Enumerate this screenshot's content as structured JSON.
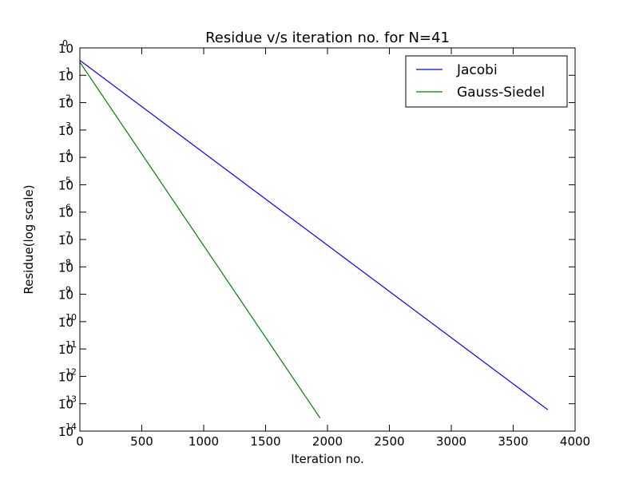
{
  "chart_data": {
    "type": "line",
    "title": "Residue v/s iteration no. for N=41",
    "xlabel": "Iteration no.",
    "ylabel": "Residue(log scale)",
    "xlim": [
      0,
      4000
    ],
    "ylim": [
      1e-14,
      1
    ],
    "yscale": "log",
    "grid": false,
    "legend_position": "top-right",
    "x_ticks": [
      0,
      500,
      1000,
      1500,
      2000,
      2500,
      3000,
      3500,
      4000
    ],
    "x_tick_labels": [
      "0",
      "500",
      "1000",
      "1500",
      "2000",
      "2500",
      "3000",
      "3500",
      "4000"
    ],
    "y_ticks": [
      {
        "base": "10",
        "exp": "0"
      },
      {
        "base": "10",
        "exp": "-1"
      },
      {
        "base": "10",
        "exp": "-2"
      },
      {
        "base": "10",
        "exp": "-3"
      },
      {
        "base": "10",
        "exp": "-4"
      },
      {
        "base": "10",
        "exp": "-5"
      },
      {
        "base": "10",
        "exp": "-6"
      },
      {
        "base": "10",
        "exp": "-7"
      },
      {
        "base": "10",
        "exp": "-8"
      },
      {
        "base": "10",
        "exp": "-9"
      },
      {
        "base": "10",
        "exp": "-10"
      },
      {
        "base": "10",
        "exp": "-11"
      },
      {
        "base": "10",
        "exp": "-12"
      },
      {
        "base": "10",
        "exp": "-13"
      },
      {
        "base": "10",
        "exp": "-14"
      }
    ],
    "series": [
      {
        "name": "Jacobi",
        "color": "#0000ff",
        "points": [
          [
            0,
            0.35
          ],
          [
            3780,
            6e-14
          ]
        ]
      },
      {
        "name": "Gauss-Siedel",
        "color": "#008000",
        "points": [
          [
            0,
            0.3
          ],
          [
            1940,
            3e-14
          ]
        ]
      }
    ]
  }
}
